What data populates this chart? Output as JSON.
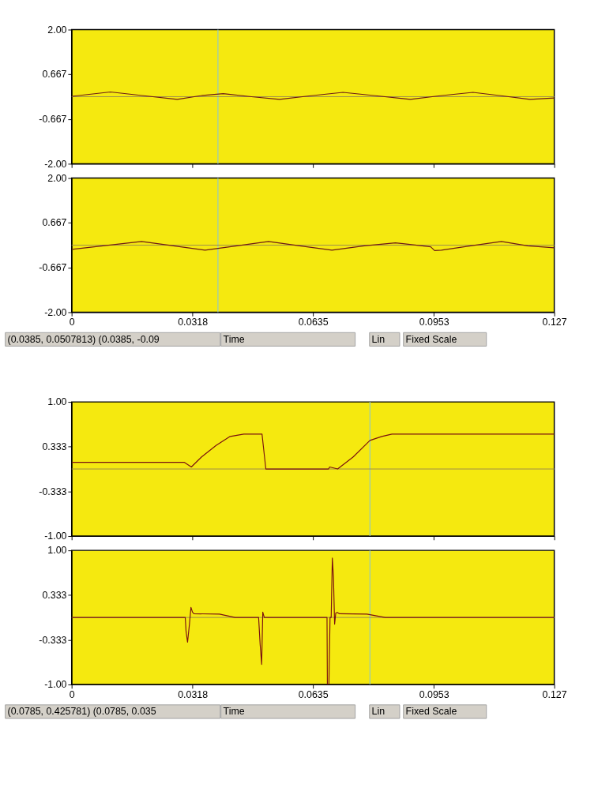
{
  "chart_data": [
    {
      "type": "line",
      "xlim": [
        0,
        0.127
      ],
      "ylim": [
        -2,
        2
      ],
      "tick_labels": "y",
      "xticks": [
        0,
        0.0318,
        0.0635,
        0.0953,
        0.127
      ],
      "yticks": [
        {
          "value": 2,
          "label": "2.00"
        },
        0.667,
        -0.667,
        {
          "value": -2,
          "label": "-2.00"
        }
      ],
      "series": [
        {
          "color": "#6e1a14",
          "x": [
            0,
            0.0102,
            0.019,
            0.0278,
            0.0339,
            0.0399,
            0.0473,
            0.0547,
            0.063,
            0.0714,
            0.08,
            0.0891,
            0.097,
            0.1056,
            0.113,
            0.1206,
            0.127
          ],
          "values": [
            0.01,
            0.14,
            0.03,
            -0.08,
            0.03,
            0.09,
            0.0,
            -0.08,
            0.03,
            0.13,
            0.03,
            -0.08,
            0.03,
            0.13,
            0.03,
            -0.08,
            -0.04
          ]
        }
      ],
      "ref_lines": [
        {
          "axis": "y",
          "value": 0,
          "color": "#9a8a50"
        },
        {
          "axis": "x",
          "value": 0.0385,
          "color": "#8fc7c9"
        }
      ]
    },
    {
      "type": "line",
      "xlim": [
        0,
        0.127
      ],
      "ylim": [
        -2,
        2
      ],
      "xticks": [
        0,
        0.0318,
        0.0635,
        0.0953,
        0.127
      ],
      "yticks": [
        {
          "value": 2,
          "label": "2.00"
        },
        0.667,
        -0.667,
        {
          "value": -2,
          "label": "-2.00"
        }
      ],
      "series": [
        {
          "color": "#6e1a14",
          "x": [
            0,
            0.0184,
            0.0268,
            0.0351,
            0.0435,
            0.0518,
            0.06,
            0.0685,
            0.077,
            0.0852,
            0.0945,
            0.0955,
            0.0973,
            0.105,
            0.1131,
            0.12,
            0.127
          ],
          "values": [
            -0.125,
            0.11,
            -0.02,
            -0.15,
            -0.02,
            0.11,
            -0.02,
            -0.15,
            -0.02,
            0.07,
            -0.05,
            -0.16,
            -0.15,
            -0.02,
            0.11,
            -0.02,
            -0.08
          ]
        }
      ],
      "ref_lines": [
        {
          "axis": "y",
          "value": 0,
          "color": "#9a8a50"
        },
        {
          "axis": "x",
          "value": 0.0385,
          "color": "#8fc7c9"
        }
      ],
      "annotations": [
        "(0.0385, 0.0507813) (0.0385, -0.09",
        "Time",
        "Lin",
        "Fixed Scale"
      ]
    },
    {
      "type": "line",
      "xlim": [
        0,
        0.127
      ],
      "ylim": [
        -1,
        1
      ],
      "tick_labels": "y",
      "xticks": [
        0,
        0.0318,
        0.0635,
        0.0953,
        0.127
      ],
      "yticks": [
        {
          "value": 1,
          "label": "1.00"
        },
        0.333,
        -0.333,
        {
          "value": -1,
          "label": "-1.00"
        }
      ],
      "series": [
        {
          "color": "#7a1010",
          "x": [
            0,
            0.0296,
            0.0315,
            0.0342,
            0.038,
            0.0417,
            0.0453,
            0.0501,
            0.0511,
            0.0676,
            0.0679,
            0.07,
            0.0741,
            0.0785,
            0.0816,
            0.0843,
            0.127
          ],
          "values": [
            0.1,
            0.1,
            0.03,
            0.18,
            0.35,
            0.485,
            0.52,
            0.52,
            0.0,
            0.0,
            0.03,
            0.0,
            0.18,
            0.425781,
            0.485,
            0.52,
            0.52
          ]
        }
      ],
      "ref_lines": [
        {
          "axis": "y",
          "value": 0,
          "color": "#9a8a50"
        },
        {
          "axis": "x",
          "value": 0.0785,
          "color": "#8fc7c9"
        }
      ]
    },
    {
      "type": "line",
      "xlim": [
        0,
        0.127
      ],
      "ylim": [
        -1,
        1
      ],
      "xticks": [
        0,
        0.0318,
        0.0635,
        0.0953,
        0.127
      ],
      "yticks": [
        {
          "value": 1,
          "label": "1.00"
        },
        0.333,
        -0.333,
        {
          "value": -1,
          "label": "-1.00"
        }
      ],
      "series": [
        {
          "color": "#7a1010",
          "x": [
            0,
            0.0299,
            0.0301,
            0.0305,
            0.031,
            0.0314,
            0.0318,
            0.0322,
            0.0389,
            0.043,
            0.0492,
            0.0496,
            0.05,
            0.0503,
            0.0507,
            0.0672,
            0.0673,
            0.0677,
            0.068,
            0.0683,
            0.0686,
            0.0689,
            0.0692,
            0.0695,
            0.0699,
            0.0705,
            0.0777,
            0.0825,
            0.127
          ],
          "values": [
            0,
            0,
            -0.2,
            -0.37,
            -0.1,
            0.15,
            0.08,
            0.055,
            0.05,
            0,
            0,
            -0.4,
            -0.7,
            0.08,
            0,
            0,
            -1.0,
            -1.0,
            0,
            0,
            0.885,
            0.6,
            -0.1,
            0.065,
            0.075,
            0.055,
            0.05,
            0,
            0
          ]
        }
      ],
      "ref_lines": [
        {
          "axis": "y",
          "value": 0,
          "color": "#9a8a50"
        },
        {
          "axis": "x",
          "value": 0.0785,
          "color": "#8fc7c9"
        }
      ],
      "annotations": [
        "(0.0785, 0.425781) (0.0785, 0.035",
        "Time",
        "Lin",
        "Fixed Scale"
      ]
    }
  ]
}
